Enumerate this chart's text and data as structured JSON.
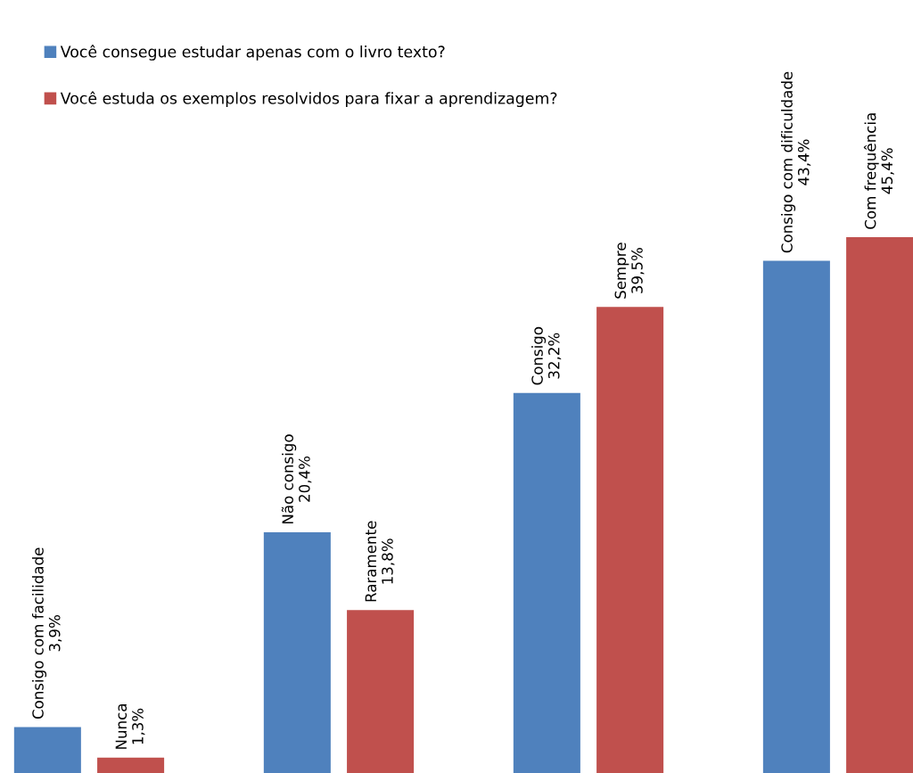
{
  "chart_data": {
    "type": "bar",
    "categories": [
      null,
      null,
      null,
      null
    ],
    "series": [
      {
        "name": "Você consegue estudar apenas com o livro texto?",
        "color": "#4f81bd",
        "values": [
          3.9,
          20.4,
          32.2,
          43.4
        ],
        "value_labels": [
          "Consigo com facilidade\n3,9%",
          "Não consigo\n20,4%",
          "Consigo\n32,2%",
          "Consigo com dificuldade\n43,4%"
        ]
      },
      {
        "name": "Você estuda os exemplos resolvidos para fixar a aprendizagem?",
        "color": "#c0504d",
        "values": [
          1.3,
          13.8,
          39.5,
          45.4
        ],
        "value_labels": [
          "Nunca\n1,3%",
          "Raramente\n13,8%",
          "Sempre\n39,5%",
          "Com frequência\n45,4%"
        ]
      }
    ],
    "ylim": [
      0,
      65.5
    ],
    "legend": "top left",
    "grid": false
  }
}
